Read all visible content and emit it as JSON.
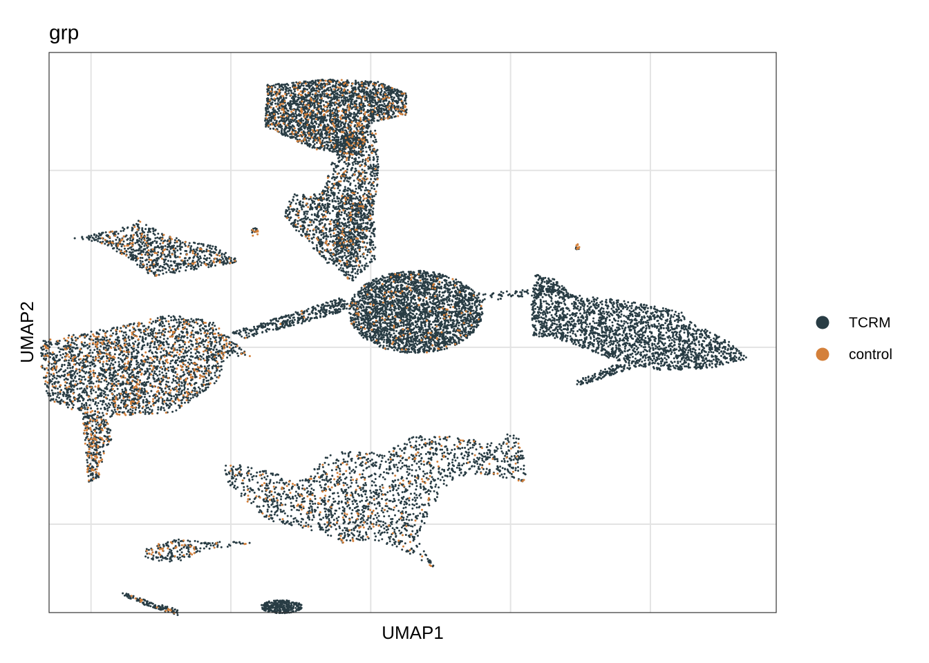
{
  "chart_data": {
    "type": "scatter",
    "title": "grp",
    "xlabel": "UMAP1",
    "ylabel": "UMAP2",
    "xlim": [
      -10,
      16
    ],
    "ylim": [
      -9,
      10
    ],
    "x_gridlines": [
      -8.5,
      -3.5,
      1.5,
      6.5,
      11.5
    ],
    "y_gridlines": [
      -6,
      0,
      6
    ],
    "tick_labels_shown": false,
    "grid": true,
    "legend_position": "right",
    "series": [
      {
        "name": "TCRM",
        "color": "#283C44"
      },
      {
        "name": "control",
        "color": "#D4803A"
      }
    ],
    "clusters": [
      {
        "id": "upper-mid-top",
        "shape": "poly",
        "n": 2600,
        "control_frac": 0.1,
        "poly": [
          [
            -2.2,
            8.9
          ],
          [
            0.0,
            9.1
          ],
          [
            1.8,
            9.0
          ],
          [
            2.8,
            8.6
          ],
          [
            2.8,
            7.9
          ],
          [
            1.5,
            7.6
          ],
          [
            1.2,
            6.5
          ],
          [
            -0.5,
            6.7
          ],
          [
            -2.3,
            7.5
          ]
        ]
      },
      {
        "id": "upper-mid-stem",
        "shape": "poly",
        "n": 1300,
        "control_frac": 0.1,
        "poly": [
          [
            0.2,
            7.2
          ],
          [
            1.7,
            7.4
          ],
          [
            1.8,
            5.8
          ],
          [
            1.5,
            4.0
          ],
          [
            1.0,
            3.0
          ],
          [
            0.0,
            2.8
          ],
          [
            -0.5,
            3.3
          ],
          [
            -1.2,
            4.0
          ],
          [
            -1.6,
            4.5
          ],
          [
            -1.3,
            5.2
          ],
          [
            -0.3,
            5.2
          ],
          [
            0.2,
            6.5
          ]
        ]
      },
      {
        "id": "upper-mid-stem-sparse",
        "shape": "poly",
        "n": 500,
        "control_frac": 0.05,
        "poly": [
          [
            0.5,
            5.2
          ],
          [
            1.6,
            5.2
          ],
          [
            1.7,
            3.0
          ],
          [
            0.8,
            2.2
          ],
          [
            0.0,
            3.0
          ]
        ]
      },
      {
        "id": "upper-left-arm",
        "shape": "poly",
        "n": 800,
        "control_frac": 0.12,
        "poly": [
          [
            -9.1,
            3.7
          ],
          [
            -7.5,
            4.0
          ],
          [
            -6.8,
            4.3
          ],
          [
            -5.8,
            3.8
          ],
          [
            -5.0,
            3.6
          ],
          [
            -4.0,
            3.4
          ],
          [
            -3.1,
            2.9
          ],
          [
            -5.0,
            2.6
          ],
          [
            -6.3,
            2.4
          ],
          [
            -7.0,
            2.9
          ],
          [
            -8.0,
            3.5
          ]
        ]
      },
      {
        "id": "left-big",
        "shape": "poly",
        "n": 5000,
        "control_frac": 0.14,
        "poly": [
          [
            -10.3,
            0.2
          ],
          [
            -9.3,
            0.4
          ],
          [
            -7.5,
            0.7
          ],
          [
            -5.7,
            1.1
          ],
          [
            -4.2,
            0.9
          ],
          [
            -3.3,
            0.1
          ],
          [
            -2.8,
            -0.3
          ],
          [
            -3.6,
            -0.3
          ],
          [
            -4.0,
            -1.2
          ],
          [
            -5.5,
            -2.2
          ],
          [
            -8.4,
            -2.4
          ],
          [
            -10.0,
            -1.8
          ],
          [
            -10.3,
            -0.8
          ]
        ]
      },
      {
        "id": "left-tail",
        "shape": "poly",
        "n": 320,
        "control_frac": 0.25,
        "poly": [
          [
            -8.8,
            -2.3
          ],
          [
            -8.0,
            -2.3
          ],
          [
            -7.7,
            -3.1
          ],
          [
            -8.0,
            -3.4
          ],
          [
            -8.2,
            -4.4
          ],
          [
            -8.6,
            -4.6
          ],
          [
            -8.7,
            -3.5
          ]
        ]
      },
      {
        "id": "center-oval",
        "shape": "ellipse",
        "n": 3500,
        "control_frac": 0.03,
        "cx": 3.1,
        "cy": 1.2,
        "rx": 2.4,
        "ry": 1.4
      },
      {
        "id": "bridge",
        "shape": "poly",
        "n": 350,
        "control_frac": 0.02,
        "poly": [
          [
            -3.5,
            0.5
          ],
          [
            -1.5,
            1.1
          ],
          [
            0.5,
            1.7
          ],
          [
            0.8,
            1.3
          ],
          [
            -1.0,
            0.8
          ],
          [
            -3.0,
            0.3
          ]
        ]
      },
      {
        "id": "center-right-whisker",
        "shape": "poly",
        "n": 60,
        "control_frac": 0.0,
        "poly": [
          [
            5.0,
            1.8
          ],
          [
            7.5,
            2.0
          ],
          [
            7.5,
            1.8
          ],
          [
            5.2,
            1.5
          ]
        ]
      },
      {
        "id": "right-cluster",
        "shape": "poly",
        "n": 2700,
        "control_frac": 0.0,
        "poly": [
          [
            7.2,
            2.3
          ],
          [
            8.5,
            1.8
          ],
          [
            10.5,
            1.6
          ],
          [
            12.6,
            1.2
          ],
          [
            13.0,
            0.8
          ],
          [
            14.2,
            0.3
          ],
          [
            15.0,
            -0.4
          ],
          [
            13.8,
            -0.7
          ],
          [
            12.0,
            -0.8
          ],
          [
            10.4,
            -0.5
          ],
          [
            8.5,
            0.2
          ],
          [
            7.3,
            0.4
          ]
        ]
      },
      {
        "id": "right-tail",
        "shape": "poly",
        "n": 120,
        "control_frac": 0.0,
        "poly": [
          [
            10.2,
            -0.6
          ],
          [
            11.2,
            -0.6
          ],
          [
            9.0,
            -1.3
          ],
          [
            8.7,
            -1.2
          ]
        ]
      },
      {
        "id": "right-top-tuft",
        "shape": "poly",
        "n": 110,
        "control_frac": 0.0,
        "poly": [
          [
            7.3,
            2.5
          ],
          [
            8.1,
            2.3
          ],
          [
            8.8,
            1.7
          ],
          [
            7.8,
            1.9
          ]
        ]
      },
      {
        "id": "bottom-big",
        "shape": "poly",
        "n": 3600,
        "control_frac": 0.11,
        "poly": [
          [
            -3.7,
            -4.0
          ],
          [
            -3.0,
            -4.0
          ],
          [
            -2.2,
            -4.2
          ],
          [
            -1.0,
            -4.5
          ],
          [
            0.0,
            -3.6
          ],
          [
            1.0,
            -3.5
          ],
          [
            2.0,
            -3.6
          ],
          [
            3.0,
            -3.0
          ],
          [
            4.0,
            -3.0
          ],
          [
            5.0,
            -3.1
          ],
          [
            6.2,
            -3.3
          ],
          [
            6.4,
            -2.8
          ],
          [
            6.9,
            -3.2
          ],
          [
            7.1,
            -4.6
          ],
          [
            6.0,
            -4.4
          ],
          [
            5.0,
            -4.3
          ],
          [
            4.3,
            -4.6
          ],
          [
            3.7,
            -5.4
          ],
          [
            3.2,
            -6.5
          ],
          [
            3.8,
            -7.5
          ],
          [
            2.5,
            -6.8
          ],
          [
            1.5,
            -6.5
          ],
          [
            0.5,
            -6.7
          ],
          [
            0.0,
            -6.4
          ],
          [
            -1.0,
            -6.1
          ],
          [
            -2.1,
            -5.9
          ],
          [
            -3.0,
            -5.2
          ],
          [
            -3.7,
            -4.5
          ]
        ]
      },
      {
        "id": "bottom-left-small",
        "shape": "poly",
        "n": 200,
        "control_frac": 0.12,
        "poly": [
          [
            -6.5,
            -6.8
          ],
          [
            -5.5,
            -6.5
          ],
          [
            -4.5,
            -6.6
          ],
          [
            -2.5,
            -6.6
          ],
          [
            -4.5,
            -6.9
          ],
          [
            -5.4,
            -7.3
          ],
          [
            -6.6,
            -7.2
          ]
        ]
      },
      {
        "id": "bottom-left-tiny-line",
        "shape": "poly",
        "n": 130,
        "control_frac": 0.08,
        "poly": [
          [
            -7.4,
            -8.3
          ],
          [
            -6.8,
            -8.5
          ],
          [
            -5.4,
            -8.9
          ],
          [
            -5.4,
            -9.1
          ],
          [
            -6.7,
            -8.7
          ],
          [
            -7.4,
            -8.4
          ]
        ]
      },
      {
        "id": "bottom-tiny-ellipse",
        "shape": "ellipse",
        "n": 300,
        "control_frac": 0.0,
        "cx": -1.7,
        "cy": -8.8,
        "rx": 0.75,
        "ry": 0.22
      },
      {
        "id": "small-dot-mid",
        "shape": "ellipse",
        "n": 20,
        "control_frac": 0.2,
        "cx": -2.65,
        "cy": 3.9,
        "rx": 0.12,
        "ry": 0.15
      },
      {
        "id": "small-dot-right",
        "shape": "ellipse",
        "n": 15,
        "control_frac": 0.3,
        "cx": 8.9,
        "cy": 3.4,
        "rx": 0.08,
        "ry": 0.1
      }
    ]
  }
}
